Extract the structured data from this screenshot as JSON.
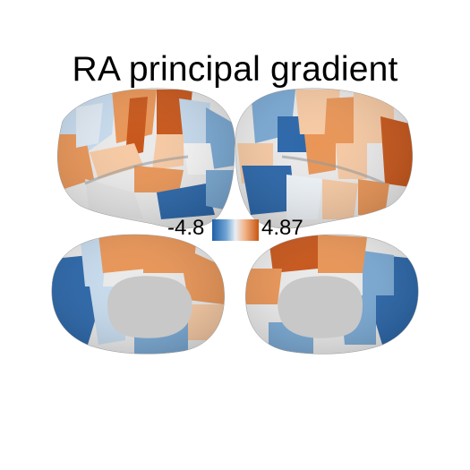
{
  "figure": {
    "title": "RA principal gradient",
    "colorbar": {
      "min_label": "-4.8",
      "max_label": "4.87",
      "colors": [
        "#1f5fa8",
        "#6fa4d2",
        "#e9eef4",
        "#f2b48a",
        "#c85612"
      ]
    },
    "palette": {
      "medial_wall": "#c8c8c8",
      "neutral_cortex": "#eaeaea",
      "deep_blue": "#2a66a9",
      "mid_blue": "#7aa9d4",
      "light_blue": "#c6dbee",
      "light_orange": "#f6c9a3",
      "mid_orange": "#e99556",
      "deep_orange": "#c8561a"
    }
  }
}
